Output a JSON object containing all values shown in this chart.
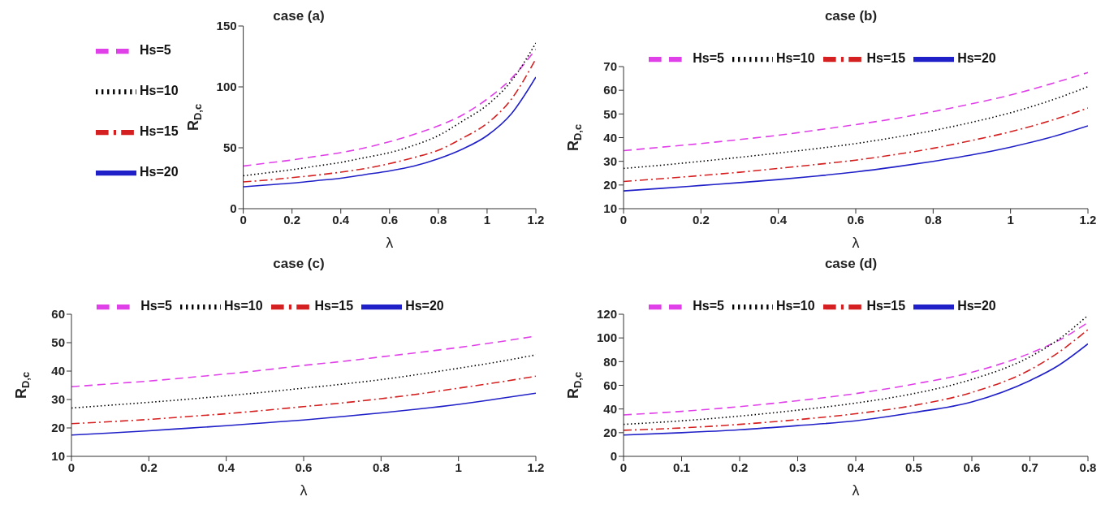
{
  "chart_data": [
    {
      "type": "line",
      "title": "case (a)",
      "xlabel": "λ",
      "ylabel": "R$_{D,c}$",
      "legend": "top left",
      "x": [
        0,
        0.1,
        0.2,
        0.3,
        0.4,
        0.5,
        0.6,
        0.7,
        0.8,
        0.9,
        1.0,
        1.1,
        1.2
      ],
      "xlim": [
        0,
        1.2
      ],
      "xticks": [
        0,
        0.2,
        0.4,
        0.6,
        0.8,
        1,
        1.2
      ],
      "ylim": [
        0,
        150
      ],
      "yticks": [
        0,
        50,
        100,
        150
      ],
      "series": [
        {
          "name": "Hs=5",
          "color": "#e040e8",
          "line_style": "dashed",
          "values": [
            35,
            37.5,
            40,
            43,
            46,
            50,
            55,
            61,
            68,
            77,
            90,
            107,
            131
          ]
        },
        {
          "name": "Hs=10",
          "color": "#000000",
          "line_style": "dotted",
          "values": [
            27,
            29.5,
            32,
            35,
            38,
            42,
            46,
            52,
            60,
            72,
            85,
            105,
            136
          ]
        },
        {
          "name": "Hs=15",
          "color": "#d42020",
          "line_style": "dashdot",
          "values": [
            22,
            23.5,
            25.5,
            27.5,
            30,
            33,
            37,
            42,
            48,
            58,
            70,
            90,
            123
          ]
        },
        {
          "name": "Hs=20",
          "color": "#2020c8",
          "line_style": "solid",
          "values": [
            18,
            19.5,
            21,
            23,
            25,
            28,
            31,
            35,
            41,
            49,
            60,
            78,
            108
          ]
        }
      ]
    },
    {
      "type": "line",
      "title": "case (b)",
      "xlabel": "λ",
      "ylabel": "R$_{D,c}$",
      "legend": "top",
      "x": [
        0,
        0.1,
        0.2,
        0.3,
        0.4,
        0.5,
        0.6,
        0.7,
        0.8,
        0.9,
        1.0,
        1.1,
        1.2
      ],
      "xlim": [
        0,
        1.2
      ],
      "xticks": [
        0,
        0.2,
        0.4,
        0.6,
        0.8,
        1,
        1.2
      ],
      "ylim": [
        10,
        70
      ],
      "yticks": [
        10,
        20,
        30,
        40,
        50,
        60,
        70
      ],
      "series": [
        {
          "name": "Hs=5",
          "color": "#e040e8",
          "line_style": "dashed",
          "values": [
            34.5,
            36,
            37.5,
            39.2,
            41,
            43.2,
            45.5,
            48,
            51,
            54.3,
            58,
            62.5,
            67.5
          ]
        },
        {
          "name": "Hs=10",
          "color": "#000000",
          "line_style": "dotted",
          "values": [
            27,
            28.4,
            30,
            31.7,
            33.5,
            35.4,
            37.5,
            40.1,
            43,
            46.5,
            50.5,
            55.5,
            61.5
          ]
        },
        {
          "name": "Hs=15",
          "color": "#d42020",
          "line_style": "dashdot",
          "values": [
            21.5,
            22.7,
            24,
            25.4,
            27,
            28.7,
            30.5,
            32.8,
            35.5,
            38.8,
            42.5,
            47,
            52.5
          ]
        },
        {
          "name": "Hs=20",
          "color": "#2020c8",
          "line_style": "solid",
          "values": [
            17.5,
            18.6,
            19.8,
            21,
            22.3,
            23.8,
            25.5,
            27.6,
            30,
            32.7,
            36,
            40,
            45
          ]
        }
      ]
    },
    {
      "type": "line",
      "title": "case (c)",
      "xlabel": "λ",
      "ylabel": "R$_{D,c}$",
      "legend": "top",
      "x": [
        0,
        0.1,
        0.2,
        0.3,
        0.4,
        0.5,
        0.6,
        0.7,
        0.8,
        0.9,
        1.0,
        1.1,
        1.2
      ],
      "xlim": [
        0,
        1.2
      ],
      "xticks": [
        0,
        0.2,
        0.4,
        0.6,
        0.8,
        1,
        1.2
      ],
      "ylim": [
        10,
        60
      ],
      "yticks": [
        10,
        20,
        30,
        40,
        50,
        60
      ],
      "series": [
        {
          "name": "Hs=5",
          "color": "#e040e8",
          "line_style": "dashed",
          "values": [
            34.5,
            35.5,
            36.5,
            37.7,
            39,
            40.4,
            42,
            43.4,
            45,
            46.6,
            48.3,
            50.2,
            52.3
          ]
        },
        {
          "name": "Hs=10",
          "color": "#000000",
          "line_style": "dotted",
          "values": [
            27,
            28,
            29,
            30.1,
            31.3,
            32.6,
            34,
            35.4,
            37,
            38.9,
            41,
            43.2,
            45.7
          ]
        },
        {
          "name": "Hs=15",
          "color": "#d42020",
          "line_style": "dashdot",
          "values": [
            21.5,
            22.2,
            23,
            24,
            25,
            26.2,
            27.5,
            28.8,
            30.3,
            32,
            34,
            36,
            38.2
          ]
        },
        {
          "name": "Hs=20",
          "color": "#2020c8",
          "line_style": "solid",
          "values": [
            17.5,
            18.2,
            19,
            19.9,
            20.8,
            21.8,
            22.8,
            24,
            25.3,
            26.7,
            28.3,
            30.2,
            32.2
          ]
        }
      ]
    },
    {
      "type": "line",
      "title": "case (d)",
      "xlabel": "λ",
      "ylabel": "R$_{D,c}$",
      "legend": "top",
      "x": [
        0,
        0.1,
        0.2,
        0.3,
        0.4,
        0.5,
        0.6,
        0.7,
        0.75,
        0.8
      ],
      "xlim": [
        0,
        0.8
      ],
      "xticks": [
        0,
        0.1,
        0.2,
        0.3,
        0.4,
        0.5,
        0.6,
        0.7,
        0.8
      ],
      "ylim": [
        0,
        120
      ],
      "yticks": [
        0,
        20,
        40,
        60,
        80,
        100,
        120
      ],
      "series": [
        {
          "name": "Hs=5",
          "color": "#e040e8",
          "line_style": "dashed",
          "values": [
            35,
            38,
            42,
            47,
            53,
            61,
            71,
            87,
            98,
            113
          ]
        },
        {
          "name": "Hs=10",
          "color": "#000000",
          "line_style": "dotted",
          "values": [
            27,
            30,
            34,
            39,
            45,
            53,
            65,
            84,
            99,
            119
          ]
        },
        {
          "name": "Hs=15",
          "color": "#d42020",
          "line_style": "dashdot",
          "values": [
            22,
            24,
            27,
            31,
            36,
            43,
            54,
            73,
            88,
            107
          ]
        },
        {
          "name": "Hs=20",
          "color": "#2020c8",
          "line_style": "solid",
          "values": [
            18,
            20,
            22.5,
            26,
            30,
            37,
            46,
            64,
            77,
            95
          ]
        }
      ]
    }
  ]
}
